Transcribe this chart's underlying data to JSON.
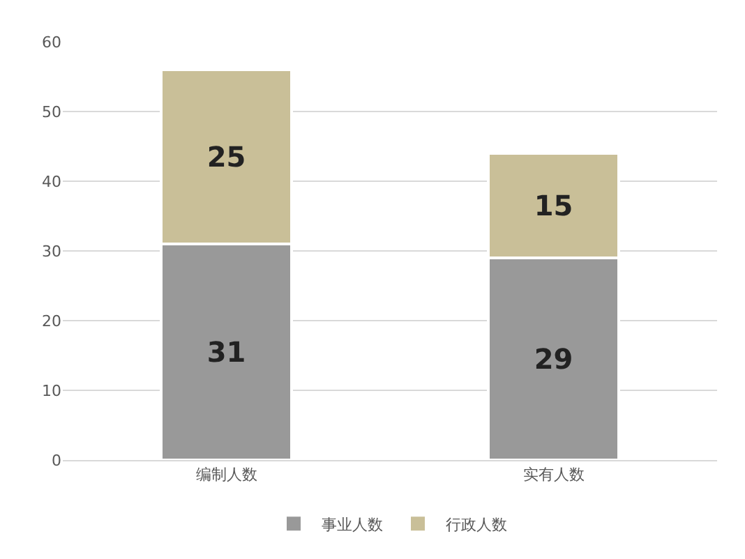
{
  "chart_data": {
    "type": "bar",
    "stacked": true,
    "categories": [
      "编制人数",
      "实有人数"
    ],
    "series": [
      {
        "name": "事业人数",
        "color": "#999999",
        "values": [
          31,
          29
        ]
      },
      {
        "name": "行政人数",
        "color": "#c9bf98",
        "values": [
          25,
          15
        ]
      }
    ],
    "ylim": [
      0,
      60
    ],
    "yticks": [
      0,
      10,
      20,
      30,
      40,
      50,
      60
    ],
    "grid": "y",
    "legend": "bottom",
    "data_labels": true
  }
}
